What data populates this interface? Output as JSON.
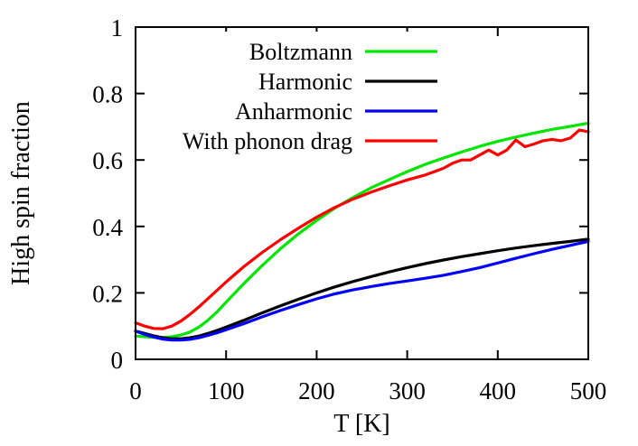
{
  "chart_data": {
    "type": "line",
    "title": "",
    "xlabel": "T [K]",
    "ylabel": "High spin fraction",
    "xlim": [
      0,
      500
    ],
    "ylim": [
      0,
      1
    ],
    "xticks": [
      0,
      100,
      200,
      300,
      400,
      500
    ],
    "yticks": [
      0,
      0.2,
      0.4,
      0.6,
      0.8,
      1
    ],
    "ytick_labels": [
      "0",
      "0.2",
      "0.4",
      "0.6",
      "0.8",
      "1"
    ],
    "grid": false,
    "legend_position": "top-left",
    "series": [
      {
        "name": "Boltzmann",
        "color": "#00e600",
        "x": [
          0,
          10,
          20,
          30,
          40,
          50,
          60,
          70,
          80,
          90,
          100,
          120,
          140,
          160,
          180,
          200,
          220,
          240,
          260,
          280,
          300,
          320,
          340,
          360,
          380,
          400,
          420,
          440,
          460,
          480,
          500
        ],
        "y": [
          0.07,
          0.068,
          0.066,
          0.066,
          0.068,
          0.073,
          0.082,
          0.097,
          0.118,
          0.143,
          0.172,
          0.229,
          0.283,
          0.333,
          0.378,
          0.418,
          0.455,
          0.487,
          0.516,
          0.541,
          0.565,
          0.587,
          0.606,
          0.624,
          0.641,
          0.656,
          0.669,
          0.681,
          0.692,
          0.701,
          0.711
        ]
      },
      {
        "name": "Harmonic",
        "color": "#000000",
        "x": [
          0,
          10,
          20,
          30,
          40,
          50,
          60,
          70,
          80,
          90,
          100,
          120,
          140,
          160,
          180,
          200,
          220,
          240,
          260,
          280,
          300,
          320,
          340,
          360,
          380,
          400,
          420,
          440,
          460,
          480,
          500
        ],
        "y": [
          0.085,
          0.078,
          0.071,
          0.065,
          0.062,
          0.062,
          0.065,
          0.07,
          0.078,
          0.087,
          0.097,
          0.118,
          0.14,
          0.161,
          0.181,
          0.2,
          0.218,
          0.234,
          0.249,
          0.263,
          0.276,
          0.288,
          0.299,
          0.309,
          0.318,
          0.327,
          0.335,
          0.342,
          0.349,
          0.355,
          0.362
        ]
      },
      {
        "name": "Anharmonic",
        "color": "#0000ff",
        "x": [
          0,
          10,
          20,
          30,
          40,
          50,
          60,
          70,
          80,
          90,
          100,
          120,
          140,
          160,
          180,
          200,
          220,
          240,
          260,
          280,
          300,
          320,
          340,
          360,
          380,
          400,
          420,
          440,
          460,
          480,
          500
        ],
        "y": [
          0.085,
          0.075,
          0.067,
          0.061,
          0.058,
          0.058,
          0.06,
          0.065,
          0.072,
          0.08,
          0.089,
          0.108,
          0.128,
          0.147,
          0.165,
          0.182,
          0.197,
          0.209,
          0.219,
          0.228,
          0.236,
          0.244,
          0.253,
          0.264,
          0.276,
          0.29,
          0.304,
          0.318,
          0.331,
          0.343,
          0.355
        ]
      },
      {
        "name": "With phonon drag",
        "color": "#ff0000",
        "x": [
          0,
          10,
          20,
          30,
          40,
          50,
          60,
          70,
          80,
          90,
          100,
          120,
          140,
          160,
          180,
          200,
          220,
          240,
          260,
          280,
          300,
          320,
          330,
          340,
          350,
          360,
          370,
          380,
          390,
          400,
          410,
          420,
          430,
          440,
          450,
          460,
          470,
          480,
          490,
          500
        ],
        "y": [
          0.11,
          0.1,
          0.093,
          0.092,
          0.1,
          0.115,
          0.135,
          0.158,
          0.183,
          0.208,
          0.233,
          0.28,
          0.322,
          0.36,
          0.395,
          0.428,
          0.457,
          0.482,
          0.503,
          0.522,
          0.54,
          0.555,
          0.565,
          0.575,
          0.59,
          0.6,
          0.6,
          0.615,
          0.63,
          0.615,
          0.63,
          0.66,
          0.64,
          0.648,
          0.658,
          0.662,
          0.658,
          0.666,
          0.69,
          0.685
        ]
      }
    ]
  }
}
